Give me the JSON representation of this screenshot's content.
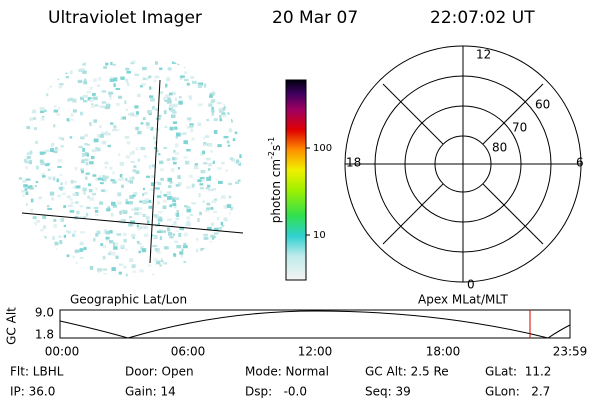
{
  "header": {
    "instrument": "Ultraviolet Imager",
    "date": "20 Mar 07",
    "time": "22:07:02 UT"
  },
  "colorbar": {
    "label": "photon cm",
    "sup1": "-2",
    "mid": "s",
    "sup2": "-1",
    "ticks": [
      "100",
      "10"
    ]
  },
  "polar": {
    "clock_labels": [
      "12",
      "18",
      "6",
      "0"
    ],
    "lat_labels": [
      "60",
      "70",
      "80"
    ]
  },
  "orbit": {
    "left_label": "Geographic Lat/Lon",
    "right_label": "Apex MLat/MLT",
    "axis_label": "GC Alt",
    "alt_ticks": [
      "9.0",
      "1.8"
    ],
    "time_ticks": [
      "00:00",
      "06:00",
      "12:00",
      "18:00",
      "23:59"
    ]
  },
  "info": {
    "rows": [
      [
        "Flt: LBHL",
        "Door: Open",
        "Mode: Normal",
        "GC Alt: 2.5 Re",
        "GLat:  11.2"
      ],
      [
        "IP: 36.0",
        "Gain: 14",
        "Dsp:   -0.0",
        "Seq: 39",
        "GLon:   2.7"
      ]
    ]
  }
}
